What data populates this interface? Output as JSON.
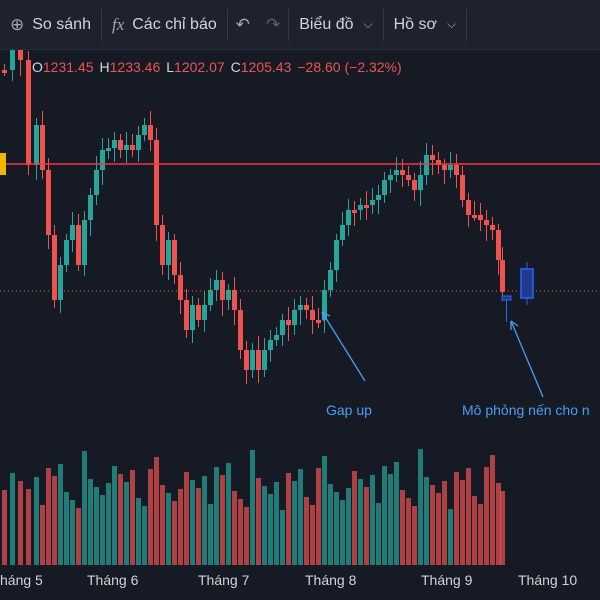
{
  "toolbar": {
    "compare_label": "So sánh",
    "indicators_label": "Các chỉ báo",
    "chart_label": "Biểu đồ",
    "profile_label": "Hồ sơ"
  },
  "ohlc": {
    "o_label": "O",
    "o": "1231.45",
    "h_label": "H",
    "h": "1233.46",
    "l_label": "L",
    "l": "1202.07",
    "c_label": "C",
    "c": "1205.43",
    "change": "−28.60 (−2.32%)"
  },
  "annotations": {
    "gap_up": "Gap up",
    "simulated_candle": "Mô phỏng nến cho n"
  },
  "x_axis": [
    "háng 5",
    "Tháng 6",
    "Tháng 7",
    "Tháng 8",
    "Tháng 9",
    "Tháng 10"
  ],
  "colors": {
    "up": "#26a69a",
    "down": "#ef5350",
    "resistance_line": "#f23645",
    "simulated_candle": "#2962ff",
    "annotation": "#4a9df2",
    "price_marker": "#f5b400"
  },
  "icons": {
    "compare": "plus-circle-icon",
    "indicators": "fx-icon",
    "undo": "undo-icon",
    "redo": "redo-icon",
    "chart_dropdown": "chevron-down-icon",
    "profile_dropdown": "chevron-down-icon"
  }
}
